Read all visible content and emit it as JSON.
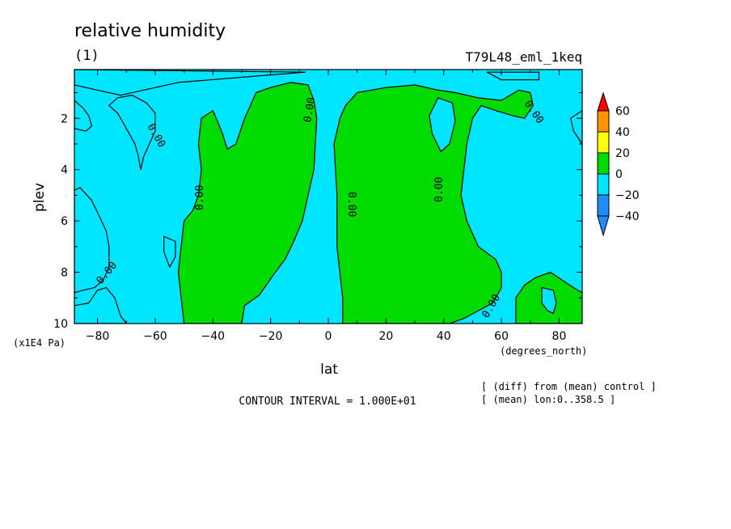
{
  "chart_data": {
    "type": "heatmap",
    "title": "relative humidity",
    "subtitle": "(1)",
    "run_label": "T79L48_eml_1keq",
    "xlabel": "lat",
    "x_units": "(degrees_north)",
    "ylabel": "plev",
    "y_units": "(x1E4 Pa)",
    "xlim": [
      -88,
      88
    ],
    "ylim": [
      10,
      0.1
    ],
    "y_axis": "inverted",
    "x_ticks": [
      -80,
      -60,
      -40,
      -20,
      0,
      20,
      40,
      60,
      80
    ],
    "x_tick_labels": [
      "-80",
      "-60",
      "-40",
      "-20",
      "0",
      "20",
      "40",
      "60",
      "80"
    ],
    "y_ticks": [
      2,
      4,
      6,
      8,
      10
    ],
    "y_tick_labels": [
      "2",
      "4",
      "6",
      "8",
      "10"
    ],
    "levels": [
      -40,
      -20,
      0,
      20,
      40,
      60
    ],
    "colorbar_labels": [
      "60",
      "40",
      "20",
      "0",
      "-20",
      "-40"
    ],
    "colorbar": [
      "#1e8cff",
      "#00e6ff",
      "#00dc00",
      "#ffff00",
      "#ff9600",
      "#ff0000"
    ],
    "field_colors": {
      "below_zero": "#00e6ff",
      "zero_to_20": "#00dc00"
    },
    "contour_labels": [
      "0.00",
      "0.00",
      "0.00",
      "0.00",
      "0.00",
      "0.00",
      "0.00",
      "0.00"
    ],
    "contour_interval": "CONTOUR INTERVAL = 1.000E+01",
    "notes": [
      "[ (diff) from (mean) control ]",
      "[ (mean) lon:0..358.5 ]"
    ],
    "regions_positive": [
      [
        [
          -50,
          10
        ],
        [
          -51,
          9
        ],
        [
          -52,
          8
        ],
        [
          -51,
          7
        ],
        [
          -50,
          6
        ],
        [
          -47,
          5.6
        ],
        [
          -45,
          5
        ],
        [
          -44,
          4
        ],
        [
          -45,
          3
        ],
        [
          -44,
          2
        ],
        [
          -40,
          1.7
        ],
        [
          -37,
          2.5
        ],
        [
          -35,
          3.2
        ],
        [
          -32,
          3
        ],
        [
          -29,
          2
        ],
        [
          -25,
          1
        ],
        [
          -20,
          0.8
        ],
        [
          -13,
          0.6
        ],
        [
          -7,
          0.7
        ],
        [
          -5,
          1.3
        ],
        [
          -4,
          2
        ],
        [
          -5,
          4
        ],
        [
          -7,
          5
        ],
        [
          -9,
          6
        ],
        [
          -12,
          6.8
        ],
        [
          -15,
          7.5
        ],
        [
          -19,
          8.1
        ],
        [
          -24,
          8.9
        ],
        [
          -29,
          9.3
        ],
        [
          -30,
          10
        ]
      ],
      [
        [
          5,
          10
        ],
        [
          5,
          9
        ],
        [
          3,
          7
        ],
        [
          3,
          5
        ],
        [
          2,
          3
        ],
        [
          4,
          2
        ],
        [
          6,
          1.5
        ],
        [
          10,
          1
        ],
        [
          20,
          0.8
        ],
        [
          30,
          0.7
        ],
        [
          38,
          0.9
        ],
        [
          44,
          1
        ],
        [
          52,
          1.2
        ],
        [
          60,
          1.3
        ],
        [
          66,
          0.9
        ],
        [
          70,
          1
        ],
        [
          71,
          1.5
        ],
        [
          68,
          2
        ],
        [
          64,
          1.9
        ],
        [
          58,
          1.7
        ],
        [
          53,
          1.5
        ],
        [
          50,
          2
        ],
        [
          48,
          3
        ],
        [
          47,
          4
        ],
        [
          46,
          5
        ],
        [
          48,
          6
        ],
        [
          52,
          7
        ],
        [
          58,
          7.5
        ],
        [
          60,
          8
        ],
        [
          60,
          8.6
        ],
        [
          57,
          9.2
        ],
        [
          52,
          9.5
        ],
        [
          47,
          9.8
        ],
        [
          42,
          10
        ]
      ],
      [
        [
          65,
          10
        ],
        [
          65,
          9
        ],
        [
          68,
          8.5
        ],
        [
          72,
          8.2
        ],
        [
          77,
          8
        ],
        [
          81,
          8.3
        ],
        [
          85,
          8.6
        ],
        [
          88,
          8.8
        ],
        [
          88,
          10
        ]
      ]
    ],
    "regions_negative": [
      [
        [
          -88,
          10
        ],
        [
          -88,
          9.3
        ],
        [
          -83,
          9.2
        ],
        [
          -80,
          8.7
        ],
        [
          -77,
          8.6
        ],
        [
          -74,
          9
        ],
        [
          -72,
          9.7
        ],
        [
          -70,
          10
        ]
      ],
      [
        [
          -88,
          5.7
        ],
        [
          -88,
          4.8
        ],
        [
          -86,
          4.7
        ],
        [
          -82,
          5.2
        ],
        [
          -79,
          5.9
        ],
        [
          -77,
          6.4
        ],
        [
          -76,
          7
        ],
        [
          -76,
          7.8
        ],
        [
          -78,
          8.3
        ],
        [
          -81,
          8.6
        ],
        [
          -85,
          8.7
        ],
        [
          -88,
          8.8
        ]
      ],
      [
        [
          -88,
          1.3
        ],
        [
          -85,
          1.6
        ],
        [
          -83,
          1.9
        ],
        [
          -82,
          2.3
        ],
        [
          -84,
          2.5
        ],
        [
          -88,
          2.4
        ]
      ],
      [
        [
          -73,
          1.2
        ],
        [
          -68,
          1.1
        ],
        [
          -63,
          1.4
        ],
        [
          -60,
          1.8
        ],
        [
          -60,
          2.5
        ],
        [
          -62,
          3
        ],
        [
          -64,
          3.5
        ],
        [
          -65,
          4
        ],
        [
          -66,
          3.4
        ],
        [
          -67,
          3
        ],
        [
          -69,
          2.6
        ],
        [
          -71,
          2.2
        ],
        [
          -73,
          1.8
        ],
        [
          -76,
          1.5
        ]
      ],
      [
        [
          -57,
          6.6
        ],
        [
          -53,
          6.8
        ],
        [
          -53,
          7.4
        ],
        [
          -55,
          7.8
        ],
        [
          -57,
          7.2
        ]
      ],
      [
        [
          -8,
          0.2
        ],
        [
          -30,
          0.4
        ],
        [
          -52,
          0.6
        ],
        [
          -72,
          1.1
        ],
        [
          -80,
          0.9
        ],
        [
          -88,
          0.7
        ],
        [
          -88,
          0.1
        ]
      ],
      [
        [
          38,
          1.2
        ],
        [
          43,
          1.4
        ],
        [
          44,
          2.1
        ],
        [
          42,
          3
        ],
        [
          39,
          3.3
        ],
        [
          36,
          2.6
        ],
        [
          35,
          1.9
        ]
      ],
      [
        [
          74,
          8.6
        ],
        [
          78,
          8.7
        ],
        [
          79,
          9.2
        ],
        [
          78,
          9.6
        ],
        [
          76,
          9.5
        ],
        [
          74,
          9.2
        ]
      ],
      [
        [
          84,
          2
        ],
        [
          88,
          1.7
        ],
        [
          88,
          3
        ],
        [
          85,
          2.5
        ]
      ],
      [
        [
          73,
          0.5
        ],
        [
          60,
          0.5
        ],
        [
          55,
          0.2
        ],
        [
          73,
          0.2
        ]
      ]
    ]
  }
}
